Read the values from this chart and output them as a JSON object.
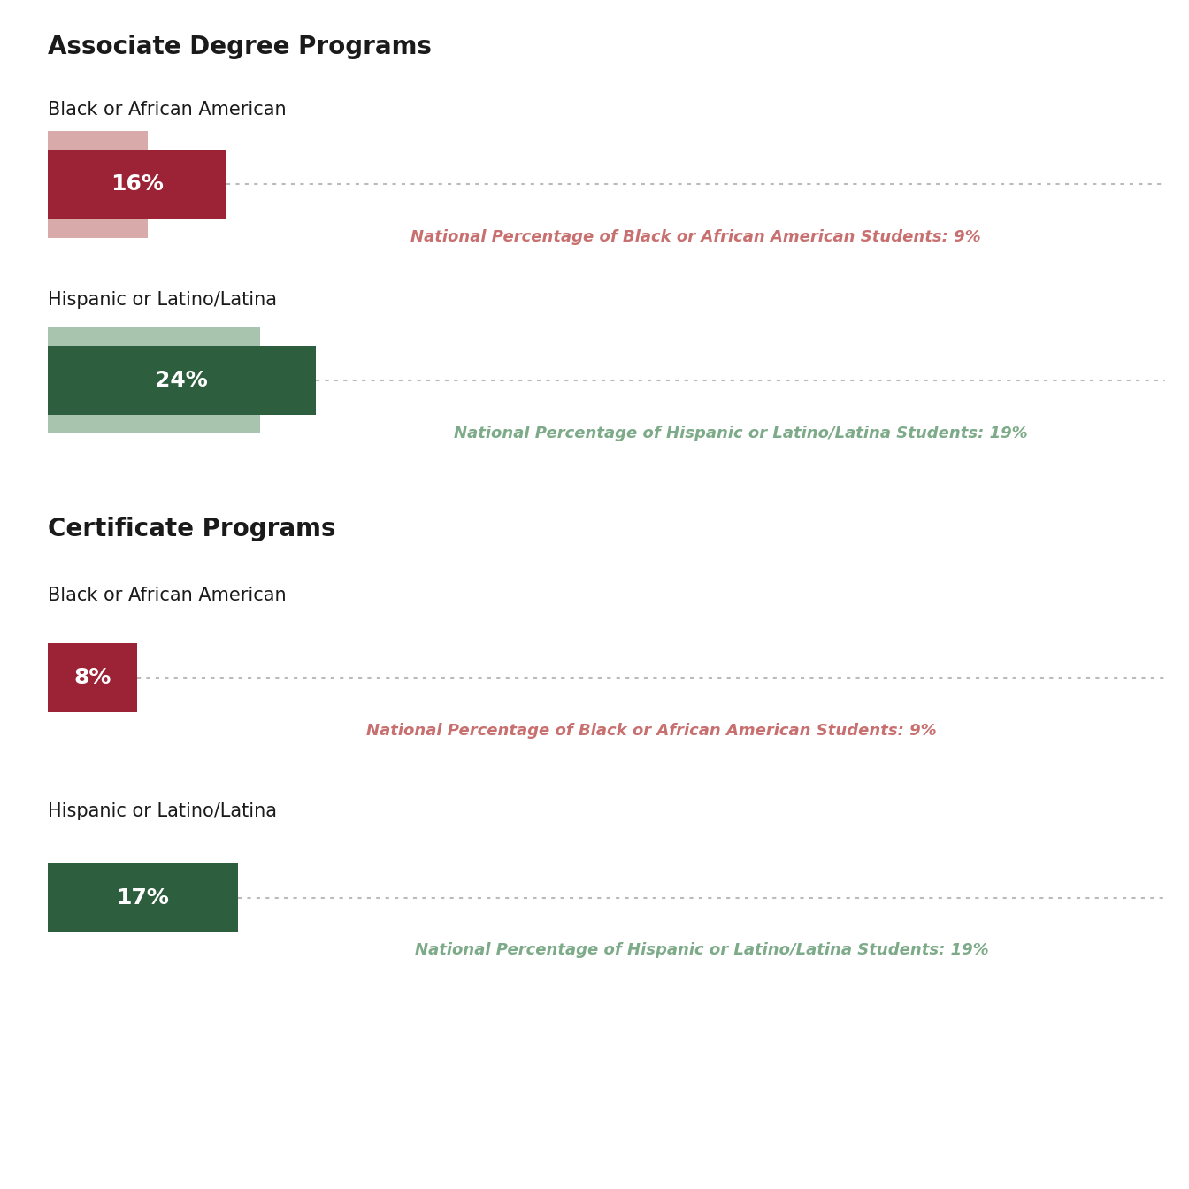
{
  "sections": [
    {
      "title": "Associate Degree Programs",
      "subsections": [
        {
          "label": "Black or African American",
          "bar_value": 16,
          "bar_color": "#9B2335",
          "national_value": 9,
          "national_label": "National Percentage of Black or African American Students: 9%",
          "national_text_color": "#C87070",
          "shadow_color": "#D9AAAA"
        },
        {
          "label": "Hispanic or Latino/Latina",
          "bar_value": 24,
          "bar_color": "#2D5E3E",
          "national_value": 19,
          "national_label": "National Percentage of Hispanic or Latino/Latina Students: 19%",
          "national_text_color": "#7DAA88",
          "shadow_color": "#A8C4AE"
        }
      ]
    },
    {
      "title": "Certificate Programs",
      "subsections": [
        {
          "label": "Black or African American",
          "bar_value": 8,
          "bar_color": "#9B2335",
          "national_value": 9,
          "national_label": "National Percentage of Black or African American Students: 9%",
          "national_text_color": "#C87070",
          "shadow_color": null
        },
        {
          "label": "Hispanic or Latino/Latina",
          "bar_value": 17,
          "bar_color": "#2D5E3E",
          "national_value": 19,
          "national_label": "National Percentage of Hispanic or Latino/Latina Students: 19%",
          "national_text_color": "#7DAA88",
          "shadow_color": null
        }
      ]
    }
  ],
  "max_value": 100,
  "background_color": "#FFFFFF",
  "text_color": "#1a1a1a",
  "dotted_line_color": "#BBBBBB",
  "label_fontsize": 15,
  "title_fontsize": 20,
  "bar_label_fontsize": 18,
  "national_label_fontsize": 13
}
